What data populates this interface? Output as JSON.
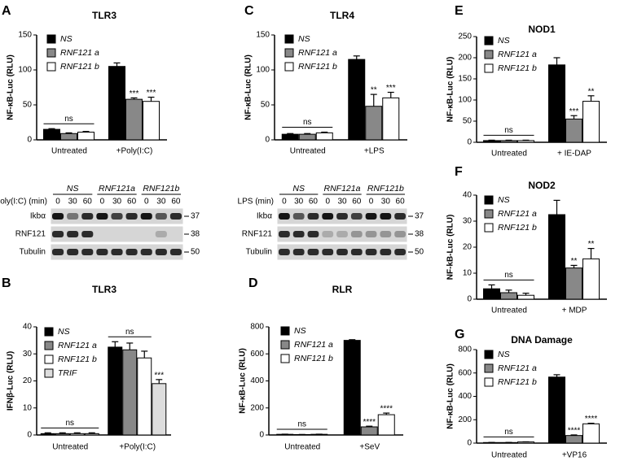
{
  "chart_data": [
    {
      "type": "bar",
      "panel": "A",
      "title": "TLR3",
      "y_label": "NF-κB-Luc (RLU)",
      "categories": [
        "Untreated",
        "+Poly(I:C)"
      ],
      "ylim": [
        0,
        150
      ],
      "yticks": [
        0,
        50,
        100,
        150
      ],
      "series": [
        {
          "name": "NS",
          "color": "#000000",
          "values": [
            15,
            105
          ],
          "errors": [
            1,
            5
          ]
        },
        {
          "name": "RNF121 a",
          "color": "#888888",
          "values": [
            9,
            58
          ],
          "errors": [
            1,
            2
          ]
        },
        {
          "name": "RNF121 b",
          "color": "#ffffff",
          "values": [
            11,
            55
          ],
          "errors": [
            1,
            6
          ]
        }
      ],
      "annotations": [
        "ns",
        "***",
        "***"
      ]
    },
    {
      "type": "bar",
      "panel": "B",
      "title": "TLR3",
      "y_label": "IFNβ-Luc (RLU)",
      "categories": [
        "Untreated",
        "+Poly(I:C)"
      ],
      "ylim": [
        0,
        40
      ],
      "yticks": [
        0,
        10,
        20,
        30,
        40
      ],
      "series": [
        {
          "name": "NS",
          "color": "#000000",
          "values": [
            0.5,
            32.5
          ],
          "errors": [
            0.3,
            2
          ]
        },
        {
          "name": "RNF121 a",
          "color": "#888888",
          "values": [
            0.5,
            31.5
          ],
          "errors": [
            0.3,
            2.5
          ]
        },
        {
          "name": "RNF121 b",
          "color": "#ffffff",
          "values": [
            0.5,
            28.5
          ],
          "errors": [
            0.3,
            2.5
          ]
        },
        {
          "name": "TRIF",
          "color": "#dddddd",
          "values": [
            0.5,
            19
          ],
          "errors": [
            0.3,
            1.5
          ]
        }
      ],
      "annotations": [
        "ns",
        "ns",
        "***"
      ]
    },
    {
      "type": "bar",
      "panel": "C",
      "title": "TLR4",
      "y_label": "NF-κB-Luc (RLU)",
      "categories": [
        "Untreated",
        "+LPS"
      ],
      "ylim": [
        0,
        150
      ],
      "yticks": [
        0,
        50,
        100,
        150
      ],
      "series": [
        {
          "name": "NS",
          "color": "#000000",
          "values": [
            8,
            115
          ],
          "errors": [
            1,
            5
          ]
        },
        {
          "name": "RNF121 a",
          "color": "#888888",
          "values": [
            8,
            48
          ],
          "errors": [
            1,
            17
          ]
        },
        {
          "name": "RNF121 b",
          "color": "#ffffff",
          "values": [
            10,
            60
          ],
          "errors": [
            1,
            8
          ]
        }
      ],
      "annotations": [
        "ns",
        "**",
        "***"
      ]
    },
    {
      "type": "bar",
      "panel": "D",
      "title": "RLR",
      "y_label": "NF-κB-Luc (RLU)",
      "categories": [
        "Untreated",
        "+SeV"
      ],
      "ylim": [
        0,
        800
      ],
      "yticks": [
        0,
        200,
        400,
        600,
        800
      ],
      "series": [
        {
          "name": "NS",
          "color": "#000000",
          "values": [
            5,
            700
          ],
          "errors": [
            1,
            5
          ]
        },
        {
          "name": "RNF121 a",
          "color": "#888888",
          "values": [
            3,
            60
          ],
          "errors": [
            1,
            5
          ]
        },
        {
          "name": "RNF121 b",
          "color": "#ffffff",
          "values": [
            5,
            150
          ],
          "errors": [
            1,
            12
          ]
        }
      ],
      "annotations": [
        "ns",
        "****",
        "****"
      ]
    },
    {
      "type": "bar",
      "panel": "E",
      "title": "NOD1",
      "y_label": "NF-κB-Luc (RLU)",
      "categories": [
        "Untreated",
        "+ IE-DAP"
      ],
      "ylim": [
        0,
        250
      ],
      "yticks": [
        0,
        50,
        100,
        150,
        200,
        250
      ],
      "series": [
        {
          "name": "NS",
          "color": "#000000",
          "values": [
            4,
            183
          ],
          "errors": [
            1,
            17
          ]
        },
        {
          "name": "RNF121 a",
          "color": "#888888",
          "values": [
            4,
            55
          ],
          "errors": [
            1,
            8
          ]
        },
        {
          "name": "RNF121 b",
          "color": "#ffffff",
          "values": [
            4,
            97
          ],
          "errors": [
            1,
            13
          ]
        }
      ],
      "annotations": [
        "ns",
        "***",
        "**"
      ]
    },
    {
      "type": "bar",
      "panel": "F",
      "title": "NOD2",
      "y_label": "NF-kB-Luc (RLU)",
      "categories": [
        "Untreated",
        "+ MDP"
      ],
      "ylim": [
        0,
        40
      ],
      "yticks": [
        0,
        10,
        20,
        30,
        40
      ],
      "series": [
        {
          "name": "NS",
          "color": "#000000",
          "values": [
            4,
            32.5
          ],
          "errors": [
            1.5,
            5.5
          ]
        },
        {
          "name": "RNF121 a",
          "color": "#888888",
          "values": [
            2.5,
            12
          ],
          "errors": [
            1,
            1
          ]
        },
        {
          "name": "RNF121 b",
          "color": "#ffffff",
          "values": [
            1.5,
            15.5
          ],
          "errors": [
            0.8,
            4
          ]
        }
      ],
      "annotations": [
        "ns",
        "**",
        "**"
      ]
    },
    {
      "type": "bar",
      "panel": "G",
      "title": "DNA Damage",
      "y_label": "NF-κB-Luc (RLU)",
      "categories": [
        "Untreated",
        "+VP16"
      ],
      "ylim": [
        0,
        800
      ],
      "yticks": [
        0,
        200,
        400,
        600,
        800
      ],
      "series": [
        {
          "name": "NS",
          "color": "#000000",
          "values": [
            5,
            565
          ],
          "errors": [
            1,
            20
          ]
        },
        {
          "name": "RNF121 a",
          "color": "#888888",
          "values": [
            5,
            65
          ],
          "errors": [
            1,
            5
          ]
        },
        {
          "name": "RNF121 b",
          "color": "#ffffff",
          "values": [
            10,
            165
          ],
          "errors": [
            1,
            5
          ]
        }
      ],
      "annotations": [
        "ns",
        "****",
        "****"
      ]
    }
  ],
  "blots": [
    {
      "treatment_label": "Poly(I:C) (min)",
      "groups": [
        "NS",
        "RNF121a",
        "RNF121b"
      ],
      "lanes": [
        0,
        30,
        60,
        0,
        30,
        60,
        0,
        30,
        60
      ],
      "rows": [
        "Ikbα",
        "RNF121",
        "Tubulin"
      ],
      "markers": [
        37,
        38,
        50
      ]
    },
    {
      "treatment_label": "LPS (min)",
      "groups": [
        "NS",
        "RNF121a",
        "RNF121b"
      ],
      "lanes": [
        0,
        30,
        60,
        0,
        30,
        60,
        0,
        30,
        60
      ],
      "rows": [
        "Ikbα",
        "RNF121",
        "Tubulin"
      ],
      "markers": [
        37,
        38,
        50
      ]
    }
  ]
}
